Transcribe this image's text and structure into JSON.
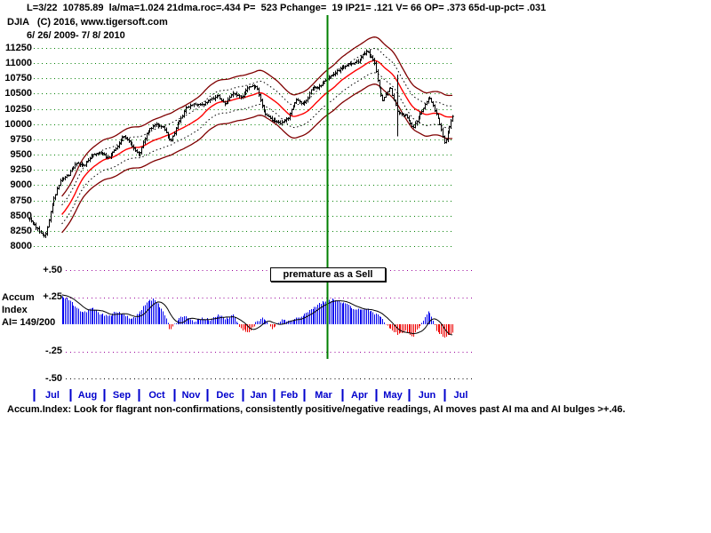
{
  "header": {
    "stats_line": "L=3/22  10785.89  la/ma=1.024 21dma.roc=.434 P=  523 Pchange=  19 IP21= .121 V= 66 OP= .373 65d-up-pct= .031",
    "symbol": "DJIA",
    "copyright": "   (C) 2016, www.tigersoft.com",
    "date_range": "6/ 26/ 2009- 7/ 8/ 2010"
  },
  "annotation": {
    "label": "premature as a Sell"
  },
  "accum_panel": {
    "title_line1": "Accum",
    "title_line2": "Index",
    "title_line3": "AI= 149/200"
  },
  "footer": {
    "note": "Accum.Index: Look for flagrant non-confirmations, consistently positive/negative readings, AI moves past AI ma and AI bulges >+.46."
  },
  "colors": {
    "grid_green": "#007f00",
    "grid_magenta": "#990099",
    "grid_black": "#000000",
    "bar_black": "#000000",
    "ma_red": "#ff0000",
    "band_maroon": "#7f0000",
    "hist_blue": "#0000ee",
    "hist_red": "#ee0000",
    "month_blue": "#0000cc",
    "vline_green": "#007f00"
  },
  "chart_data": {
    "type": "ohlc+histogram",
    "title": "DJIA 6/26/2009 - 7/8/2010",
    "price_axis": {
      "max": 11250,
      "min": 8000,
      "step": 250,
      "tick_labels": [
        "11250",
        "11000",
        "10750",
        "10500",
        "10250",
        "10000",
        "9750",
        "9500",
        "9250",
        "9000",
        "8750",
        "8500",
        "8250",
        "8000"
      ]
    },
    "accum_axis": {
      "ticks": [
        {
          "label": "+.50",
          "value": 0.5
        },
        {
          "label": "+.25",
          "value": 0.25
        },
        {
          "label": "-.25",
          "value": -0.25
        },
        {
          "label": "-.50",
          "value": -0.5
        }
      ]
    },
    "months": [
      {
        "label": "Jul",
        "days": 22
      },
      {
        "label": "Aug",
        "days": 21
      },
      {
        "label": "Sep",
        "days": 21
      },
      {
        "label": "Oct",
        "days": 22
      },
      {
        "label": "Nov",
        "days": 20
      },
      {
        "label": "Dec",
        "days": 22
      },
      {
        "label": "Jan",
        "days": 19
      },
      {
        "label": "Feb",
        "days": 19
      },
      {
        "label": "Mar",
        "days": 23
      },
      {
        "label": "Apr",
        "days": 21
      },
      {
        "label": "May",
        "days": 20
      },
      {
        "label": "Jun",
        "days": 22
      },
      {
        "label": "Jul",
        "days": 6
      }
    ],
    "lead_days": 3,
    "weekly_close": [
      8438,
      8280,
      8146,
      8744,
      9093,
      9172,
      9370,
      9321,
      9506,
      9544,
      9441,
      9605,
      9820,
      9665,
      9488,
      9865,
      9996,
      9972,
      9713,
      10023,
      10270,
      10318,
      10310,
      10389,
      10471,
      10329,
      10520,
      10428,
      10618,
      10610,
      10173,
      10067,
      10012,
      10099,
      10402,
      10325,
      10566,
      10625,
      10742,
      10850,
      10927,
      10997,
      11019,
      11204,
      11009,
      10380,
      10620,
      10193,
      10137,
      9932,
      10211,
      10451,
      10144,
      9686,
      10139
    ],
    "weekly_accum": [
      0.2,
      0.24,
      0.27,
      0.28,
      0.26,
      0.23,
      0.15,
      0.11,
      0.15,
      0.1,
      0.07,
      0.12,
      0.09,
      0.05,
      0.1,
      0.21,
      0.23,
      0.13,
      -0.06,
      0.05,
      0.07,
      0.03,
      0.06,
      0.04,
      0.08,
      0.05,
      0.08,
      -0.04,
      -0.09,
      0.03,
      0.06,
      -0.05,
      0.04,
      0.03,
      0.06,
      0.08,
      0.14,
      0.19,
      0.22,
      0.23,
      0.2,
      0.16,
      0.13,
      0.15,
      0.1,
      0.05,
      -0.04,
      -0.1,
      -0.06,
      -0.11,
      0.01,
      0.13,
      -0.07,
      -0.12,
      -0.07
    ],
    "ma_window": 21,
    "outer_envelope_pct": 3.5,
    "inner_envelope_pct": 1.8,
    "accum_ma_window": 10,
    "crash_day_index": 226,
    "crash_low": 9800,
    "green_vline_day": 183
  }
}
